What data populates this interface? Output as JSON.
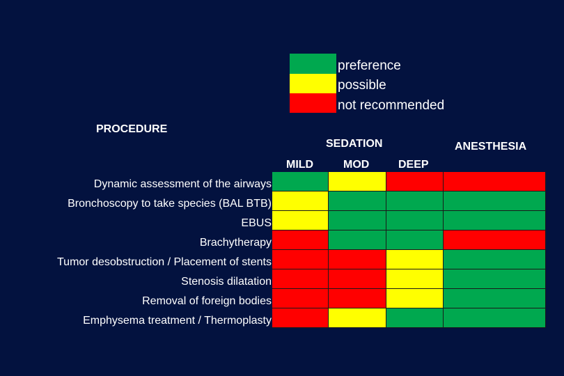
{
  "colors": {
    "background": "#03123f",
    "preference": "#00a84f",
    "possible": "#ffff00",
    "not_recommended": "#ff0000",
    "text": "#ffffff"
  },
  "legend": {
    "items": [
      {
        "label": "preference",
        "level": "preference"
      },
      {
        "label": "possible",
        "level": "possible"
      },
      {
        "label": "not recommended",
        "level": "not_recommended"
      }
    ]
  },
  "headers": {
    "procedure": "PROCEDURE",
    "sedation": "SEDATION",
    "anesthesia": "ANESTHESIA",
    "columns": [
      "MILD",
      "MOD",
      "DEEP"
    ]
  },
  "rows": [
    {
      "label": "Dynamic assessment of the airways",
      "cells": [
        "preference",
        "possible",
        "not_recommended",
        "not_recommended"
      ]
    },
    {
      "label": "Bronchoscopy to take  species (BAL BTB)",
      "cells": [
        "possible",
        "preference",
        "preference",
        "preference"
      ]
    },
    {
      "label": "EBUS",
      "cells": [
        "possible",
        "preference",
        "preference",
        "preference"
      ]
    },
    {
      "label": "Brachytherapy",
      "cells": [
        "not_recommended",
        "preference",
        "preference",
        "not_recommended"
      ]
    },
    {
      "label": "Tumor desobstruction  / Placement of stents",
      "cells": [
        "not_recommended",
        "not_recommended",
        "possible",
        "preference"
      ]
    },
    {
      "label": "Stenosis dilatation",
      "cells": [
        "not_recommended",
        "not_recommended",
        "possible",
        "preference"
      ]
    },
    {
      "label": "Removal of foreign bodies",
      "cells": [
        "not_recommended",
        "not_recommended",
        "possible",
        "preference"
      ]
    },
    {
      "label": "Emphysema treatment / Thermoplasty",
      "cells": [
        "not_recommended",
        "possible",
        "preference",
        "preference"
      ]
    }
  ],
  "chart_data": {
    "type": "heatmap",
    "title": "",
    "row_header": "PROCEDURE",
    "column_groups": [
      {
        "name": "SEDATION",
        "columns": [
          "MILD",
          "MOD",
          "DEEP"
        ]
      },
      {
        "name": "ANESTHESIA",
        "columns": [
          "ANESTHESIA"
        ]
      }
    ],
    "columns": [
      "MILD",
      "MOD",
      "DEEP",
      "ANESTHESIA"
    ],
    "legend": {
      "preference": "green",
      "possible": "yellow",
      "not recommended": "red"
    },
    "rows": [
      "Dynamic assessment of the airways",
      "Bronchoscopy to take  species (BAL BTB)",
      "EBUS",
      "Brachytherapy",
      "Tumor desobstruction  / Placement of stents",
      "Stenosis dilatation",
      "Removal of foreign bodies",
      "Emphysema treatment / Thermoplasty"
    ],
    "values": [
      [
        "preference",
        "possible",
        "not recommended",
        "not recommended"
      ],
      [
        "possible",
        "preference",
        "preference",
        "preference"
      ],
      [
        "possible",
        "preference",
        "preference",
        "preference"
      ],
      [
        "not recommended",
        "preference",
        "preference",
        "not recommended"
      ],
      [
        "not recommended",
        "not recommended",
        "possible",
        "preference"
      ],
      [
        "not recommended",
        "not recommended",
        "possible",
        "preference"
      ],
      [
        "not recommended",
        "not recommended",
        "possible",
        "preference"
      ],
      [
        "not recommended",
        "possible",
        "preference",
        "preference"
      ]
    ]
  }
}
